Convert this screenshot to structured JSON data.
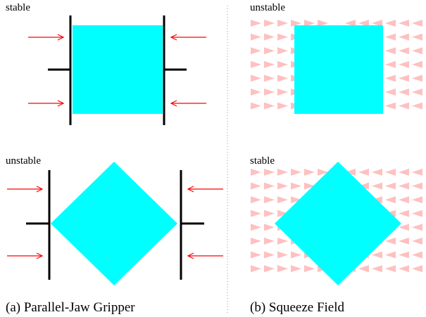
{
  "colors": {
    "object": "#00ffff",
    "jaw": "#000000",
    "force_arrow": "#ff0000",
    "field_arrow": "#ffc0c0",
    "divider": "#999999",
    "background": "#ffffff"
  },
  "panels": {
    "top_left": {
      "state": "stable"
    },
    "bottom_left": {
      "state": "unstable"
    },
    "top_right": {
      "state": "unstable"
    },
    "bottom_right": {
      "state": "stable"
    }
  },
  "captions": {
    "left": "(a) Parallel-Jaw Gripper",
    "right": "(b) Squeeze Field"
  },
  "icons": {
    "gripper_jaw": "jaw-icon",
    "squeeze_force": "arrow-right-icon",
    "field_vector": "triangle-arrow-icon"
  }
}
